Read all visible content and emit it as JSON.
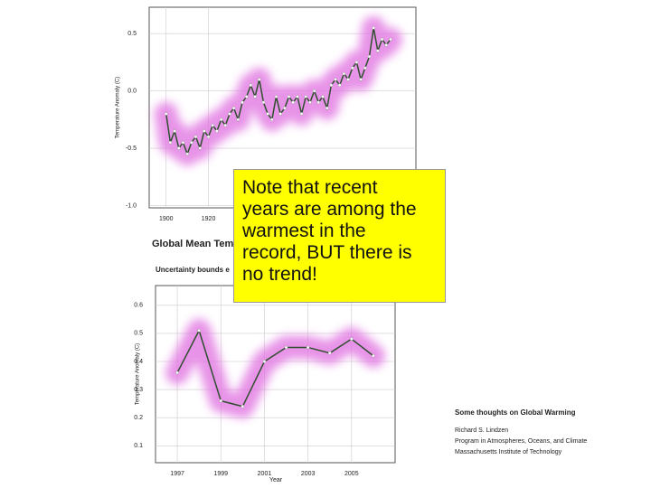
{
  "chart_data": [
    {
      "type": "line",
      "title": "Global Mean Tem",
      "y_label": "Temperature Anomaly (C)",
      "x": [
        1900,
        1902,
        1904,
        1906,
        1908,
        1910,
        1912,
        1914,
        1916,
        1918,
        1920,
        1922,
        1924,
        1926,
        1928,
        1930,
        1932,
        1934,
        1936,
        1938,
        1940,
        1942,
        1944,
        1946,
        1948,
        1950,
        1952,
        1954,
        1956,
        1958,
        1960,
        1962,
        1964,
        1966,
        1968,
        1970,
        1972,
        1974,
        1976,
        1978,
        1980,
        1982,
        1984,
        1986,
        1988,
        1990,
        1992,
        1994,
        1996,
        1998,
        2000,
        2002,
        2004,
        2006
      ],
      "series": [
        {
          "color": "#2f4f2f",
          "values": [
            -0.2,
            -0.45,
            -0.35,
            -0.5,
            -0.45,
            -0.55,
            -0.45,
            -0.4,
            -0.5,
            -0.35,
            -0.4,
            -0.3,
            -0.35,
            -0.25,
            -0.3,
            -0.2,
            -0.15,
            -0.25,
            -0.1,
            -0.05,
            0.05,
            -0.05,
            0.1,
            -0.1,
            -0.2,
            -0.25,
            -0.05,
            -0.2,
            -0.15,
            -0.05,
            -0.1,
            -0.05,
            -0.2,
            -0.05,
            -0.1,
            0.0,
            -0.1,
            -0.05,
            -0.15,
            0.05,
            0.1,
            0.05,
            0.15,
            0.1,
            0.2,
            0.25,
            0.1,
            0.2,
            0.3,
            0.55,
            0.35,
            0.45,
            0.4,
            0.45
          ]
        }
      ],
      "xlim": [
        1892,
        2018
      ],
      "xticks": [
        1900,
        1920
      ],
      "ylim": [
        -1.02,
        0.73
      ],
      "yticks": [
        0.5,
        {
          "value": 0,
          "label": "0.0"
        },
        -0.5,
        {
          "value": -1,
          "label": "-1.0"
        }
      ],
      "grid": true,
      "glow_color": "#e070e0"
    },
    {
      "type": "line",
      "title": "Uncertainty bounds e",
      "x_label": "Year",
      "y_label": "Temperature Anomaly (C)",
      "x": [
        1997,
        1998,
        1999,
        2000,
        2001,
        2002,
        2003,
        2004,
        2005,
        2006
      ],
      "series": [
        {
          "color": "#2f4f2f",
          "values": [
            0.36,
            0.51,
            0.26,
            0.24,
            0.4,
            0.45,
            0.45,
            0.43,
            0.48,
            0.42
          ]
        }
      ],
      "xlim": [
        1996,
        2007
      ],
      "xticks": [
        1997,
        1999,
        2001,
        2003,
        2005
      ],
      "ylim": [
        0.04,
        0.67
      ],
      "yticks": [
        0.1,
        0.2,
        0.3,
        0.4,
        0.5,
        0.6
      ],
      "grid": true,
      "glow_color": "#e070e0"
    }
  ],
  "note": {
    "lines": [
      "Note that recent",
      "years are among the",
      "warmest in the",
      "record, BUT there is",
      "no trend!"
    ]
  },
  "credits": {
    "title": "Some thoughts on Global Warming",
    "lines": [
      "Richard S. Lindzen",
      "Program in Atmospheres, Oceans, and Climate",
      "Massachusetts Institute of Technology"
    ]
  }
}
